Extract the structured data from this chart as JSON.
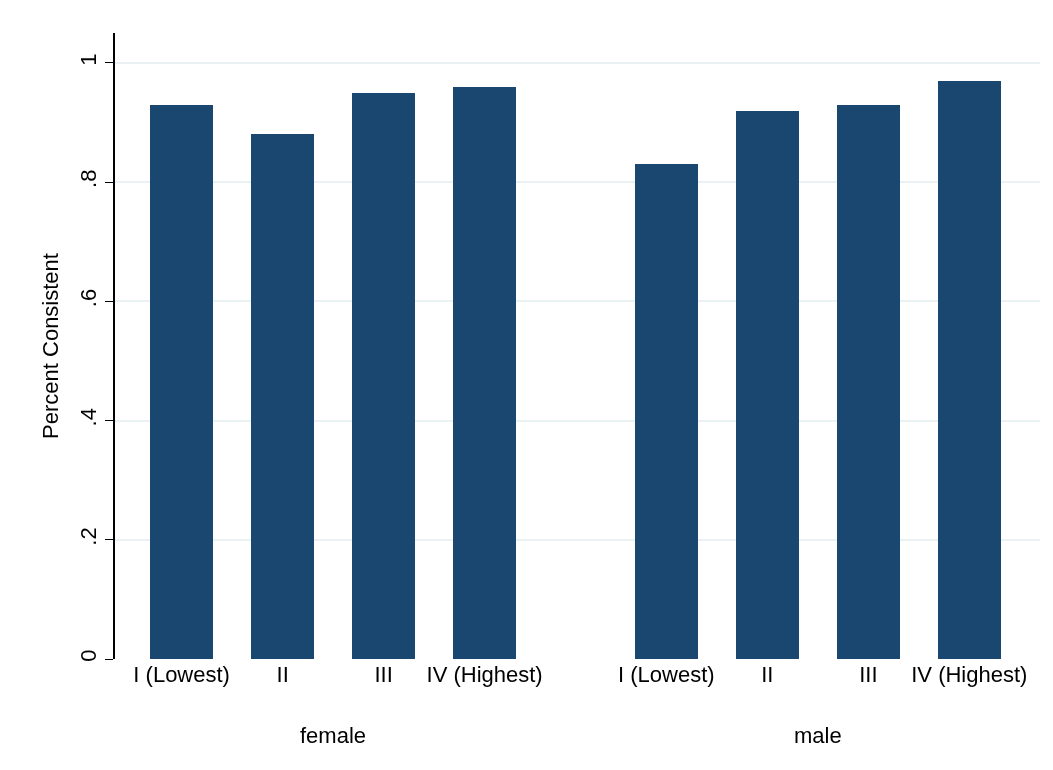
{
  "chart_data": {
    "type": "bar",
    "ylabel": "Percent Consistent",
    "categories": [
      "I (Lowest)",
      "II",
      "III",
      "IV (Highest)",
      "I (Lowest)",
      "II",
      "III",
      "IV (Highest)"
    ],
    "values": [
      0.93,
      0.88,
      0.95,
      0.96,
      0.83,
      0.92,
      0.93,
      0.97
    ],
    "color": "#1a476f",
    "ylim": [
      0,
      1.05
    ],
    "yticks": [
      {
        "value": 0,
        "label": "0"
      },
      {
        "value": 0.2,
        "label": ".2"
      },
      {
        "value": 0.4,
        "label": ".4"
      },
      {
        "value": 0.6,
        "label": ".6"
      },
      {
        "value": 0.8,
        "label": ".8"
      },
      {
        "value": 1,
        "label": "1"
      }
    ],
    "grid": "y",
    "legend": false,
    "annotations": [
      "female",
      "male"
    ]
  }
}
